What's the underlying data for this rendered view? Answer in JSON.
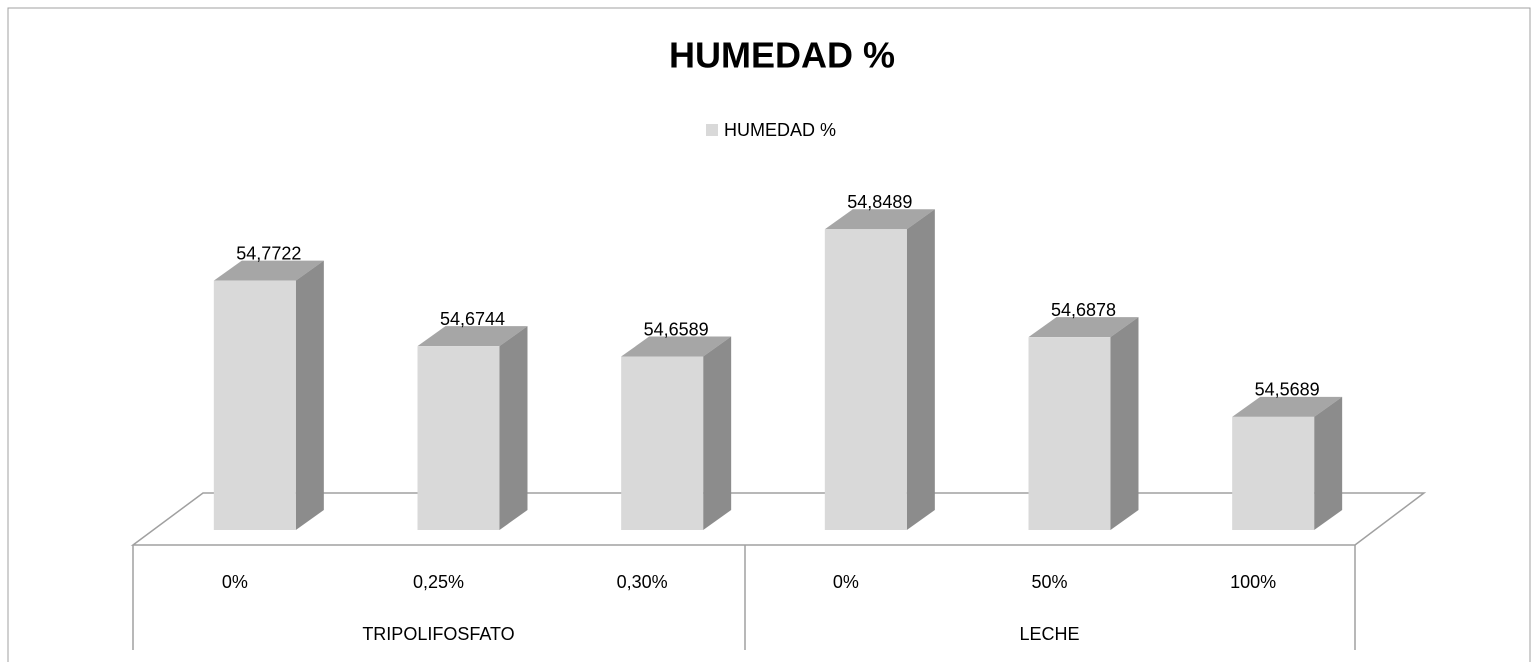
{
  "chart_data": {
    "type": "bar3d",
    "title": "HUMEDAD %",
    "groups": [
      {
        "label": "TRIPOLIFOSFATO",
        "categories": [
          "0%",
          "0,25%",
          "0,30%"
        ]
      },
      {
        "label": "LECHE",
        "categories": [
          "0%",
          "50%",
          "100%"
        ]
      }
    ],
    "series": [
      {
        "name": "HUMEDAD %",
        "color": "#d9d9d9",
        "values": [
          54.7722,
          54.6744,
          54.6589,
          54.8489,
          54.6878,
          54.5689
        ],
        "value_labels": [
          "54,7722",
          "54,6744",
          "54,6589",
          "54,8489",
          "54,6878",
          "54,5689"
        ]
      }
    ],
    "ylim": [
      54.4,
      54.9
    ],
    "legend": "top"
  }
}
